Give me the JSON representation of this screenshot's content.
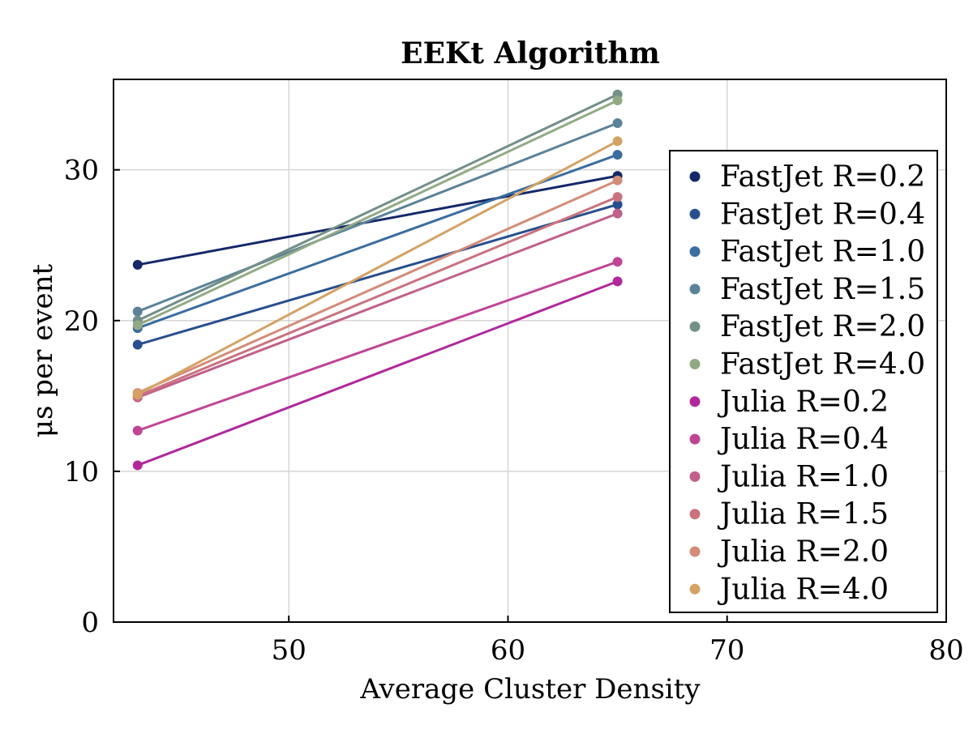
{
  "chart_data": {
    "type": "line",
    "title": "EEKt Algorithm",
    "xlabel": "Average Cluster Density",
    "ylabel": "μs per event",
    "xlim": [
      42,
      80
    ],
    "ylim": [
      0,
      36
    ],
    "xticks": [
      50,
      60,
      70,
      80
    ],
    "yticks": [
      0,
      10,
      20,
      30
    ],
    "grid": true,
    "legend_position": "right",
    "x": [
      43.1,
      65.0
    ],
    "series": [
      {
        "name": "FastJet R=0.2",
        "color": "#142869",
        "values": [
          23.7,
          29.6
        ]
      },
      {
        "name": "FastJet R=0.4",
        "color": "#284f8d",
        "values": [
          18.4,
          27.7
        ]
      },
      {
        "name": "FastJet R=1.0",
        "color": "#3a6da0",
        "values": [
          19.5,
          31.0
        ]
      },
      {
        "name": "FastJet R=1.5",
        "color": "#5a8399",
        "values": [
          20.6,
          33.1
        ]
      },
      {
        "name": "FastJet R=2.0",
        "color": "#728f88",
        "values": [
          20.0,
          35.0
        ]
      },
      {
        "name": "FastJet R=4.0",
        "color": "#91aa84",
        "values": [
          19.7,
          34.6
        ]
      },
      {
        "name": "Julia R=0.2",
        "color": "#b0289c",
        "values": [
          10.4,
          22.6
        ]
      },
      {
        "name": "Julia R=0.4",
        "color": "#bf4496",
        "values": [
          12.7,
          23.9
        ]
      },
      {
        "name": "Julia R=1.0",
        "color": "#c1608a",
        "values": [
          14.9,
          27.1
        ]
      },
      {
        "name": "Julia R=1.5",
        "color": "#c9737f",
        "values": [
          15.0,
          28.2
        ]
      },
      {
        "name": "Julia R=2.0",
        "color": "#d38c78",
        "values": [
          15.2,
          29.3
        ]
      },
      {
        "name": "Julia R=4.0",
        "color": "#d4a264",
        "values": [
          15.1,
          31.9
        ]
      }
    ]
  }
}
